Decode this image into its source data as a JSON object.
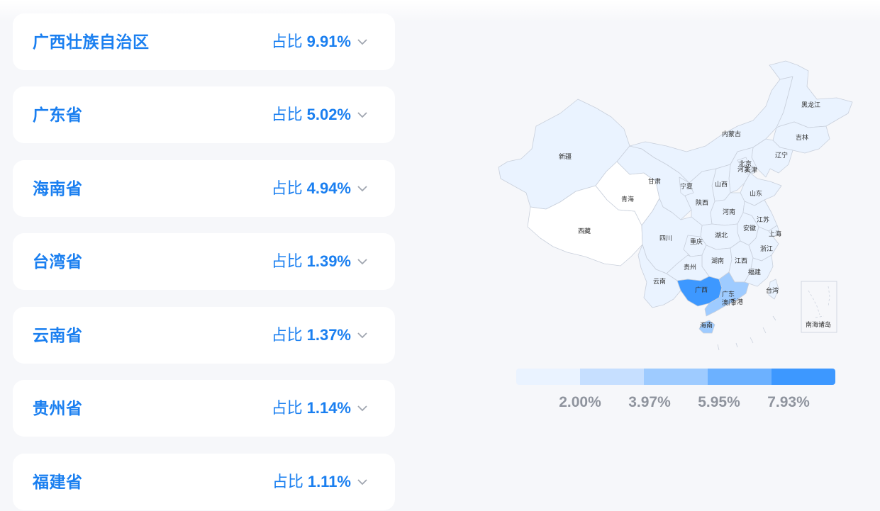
{
  "regions": [
    {
      "name": "广西壮族自治区",
      "share_prefix": "占比",
      "share_value": "9.91%"
    },
    {
      "name": "广东省",
      "share_prefix": "占比",
      "share_value": "5.02%"
    },
    {
      "name": "海南省",
      "share_prefix": "占比",
      "share_value": "4.94%"
    },
    {
      "name": "台湾省",
      "share_prefix": "占比",
      "share_value": "1.39%"
    },
    {
      "name": "云南省",
      "share_prefix": "占比",
      "share_value": "1.37%"
    },
    {
      "name": "贵州省",
      "share_prefix": "占比",
      "share_value": "1.14%"
    },
    {
      "name": "福建省",
      "share_prefix": "占比",
      "share_value": "1.11%"
    }
  ],
  "map": {
    "labels": {
      "xinjiang": "新疆",
      "xizang": "西藏",
      "qinghai": "青海",
      "gansu": "甘肃",
      "neimenggu": "内蒙古",
      "heilongjiang": "黑龙江",
      "jilin": "吉林",
      "liaoning": "辽宁",
      "beijing": "北京",
      "tianjin": "天津",
      "hebei": "河北",
      "shanxi": "山西",
      "ningxia": "宁夏",
      "shaanxi": "陕西",
      "shandong": "山东",
      "henan": "河南",
      "jiangsu": "江苏",
      "anhui": "安徽",
      "shanghai": "上海",
      "hubei": "湖北",
      "sichuan": "四川",
      "chongqing": "重庆",
      "zhejiang": "浙江",
      "hunan": "湖南",
      "jiangxi": "江西",
      "guizhou": "贵州",
      "fujian": "福建",
      "yunnan": "云南",
      "guangxi": "广西",
      "guangdong": "广东",
      "hongkong": "香港",
      "macau": "澳门",
      "taiwan": "台湾",
      "hainan": "海南",
      "south_sea": "南海诸岛"
    },
    "colors": {
      "empty": "#ffffff",
      "level1": "#eaf3ff",
      "level2": "#c6dfff",
      "level3": "#9ecbff",
      "level4": "#6cb1ff",
      "level5": "#3d98ff",
      "border": "#c8cfdb"
    }
  },
  "legend": {
    "colors": [
      "#eaf3ff",
      "#c6dfff",
      "#9ecbff",
      "#6cb1ff",
      "#3d98ff"
    ],
    "labels": [
      "2.00%",
      "3.97%",
      "5.95%",
      "7.93%"
    ]
  }
}
